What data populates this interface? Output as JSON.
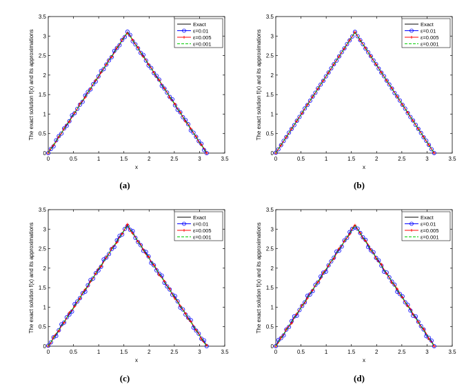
{
  "chart_data": [
    {
      "type": "line",
      "caption": "(a)",
      "xlabel": "x",
      "ylabel": "The exact solution f(x) and its approximations",
      "xlim": [
        0,
        3.5
      ],
      "ylim": [
        0,
        3.5
      ],
      "xticks": [
        "0",
        "0.5",
        "1",
        "1.5",
        "2",
        "2.5",
        "3",
        "3.5"
      ],
      "yticks": [
        "0",
        "0.5",
        "1",
        "1.5",
        "2",
        "2.5",
        "3",
        "3.5"
      ],
      "legend_position": "top-right",
      "noise_level": 0.025,
      "series": [
        {
          "name": "Exact",
          "color": "#000000",
          "style": "solid",
          "marker": "none",
          "x": [
            0,
            1.5708,
            3.1416
          ],
          "y": [
            0,
            3.1,
            0
          ]
        },
        {
          "name": "ε=0.01",
          "color": "#0000ff",
          "style": "solid",
          "marker": "circle",
          "x": [
            0,
            3.1416
          ],
          "y": [
            0,
            0
          ]
        },
        {
          "name": "ε=0.005",
          "color": "#ff0000",
          "style": "solid",
          "marker": "plus",
          "x": [
            0,
            3.1416
          ],
          "y": [
            0,
            0
          ]
        },
        {
          "name": "ε=0.001",
          "color": "#00cc00",
          "style": "dashed",
          "marker": "none",
          "x": [
            0,
            1.5708,
            3.1416
          ],
          "y": [
            0,
            3.1,
            0
          ]
        }
      ]
    },
    {
      "type": "line",
      "caption": "(b)",
      "xlabel": "x",
      "ylabel": "The exact solution f(x) and its approximations",
      "xlim": [
        0,
        3.5
      ],
      "ylim": [
        0,
        3.5
      ],
      "xticks": [
        "0",
        "0.5",
        "1",
        "1.5",
        "2",
        "2.5",
        "3",
        "3.5"
      ],
      "yticks": [
        "0",
        "0.5",
        "1",
        "1.5",
        "2",
        "2.5",
        "3",
        "3.5"
      ],
      "legend_position": "top-right",
      "noise_level": 0.006,
      "series": [
        {
          "name": "Exact",
          "color": "#000000",
          "style": "solid",
          "marker": "none",
          "x": [
            0,
            1.5708,
            3.1416
          ],
          "y": [
            0,
            3.1,
            0
          ]
        },
        {
          "name": "ε=0.01",
          "color": "#0000ff",
          "style": "solid",
          "marker": "circle",
          "x": [
            0,
            3.1416
          ],
          "y": [
            0,
            0
          ]
        },
        {
          "name": "ε=0.005",
          "color": "#ff0000",
          "style": "solid",
          "marker": "plus",
          "x": [
            0,
            3.1416
          ],
          "y": [
            0,
            0
          ]
        },
        {
          "name": "ε=0.001",
          "color": "#00cc00",
          "style": "dashed",
          "marker": "none",
          "x": [
            0,
            1.5708,
            3.1416
          ],
          "y": [
            0,
            3.1,
            0
          ]
        }
      ]
    },
    {
      "type": "line",
      "caption": "(c)",
      "xlabel": "x",
      "ylabel": "The exact solution f(x) and its approximations",
      "xlim": [
        0,
        3.5
      ],
      "ylim": [
        0,
        3.5
      ],
      "xticks": [
        "0",
        "0.5",
        "1",
        "1.5",
        "2",
        "2.5",
        "3",
        "3.5"
      ],
      "yticks": [
        "0",
        "0.5",
        "1",
        "1.5",
        "2",
        "2.5",
        "3",
        "3.5"
      ],
      "legend_position": "top-right",
      "noise_level": 0.035,
      "series": [
        {
          "name": "Exact",
          "color": "#000000",
          "style": "solid",
          "marker": "none",
          "x": [
            0,
            1.5708,
            3.1416
          ],
          "y": [
            0,
            3.1,
            0
          ]
        },
        {
          "name": "ε=0.01",
          "color": "#0000ff",
          "style": "solid",
          "marker": "circle",
          "x": [
            0,
            3.1416
          ],
          "y": [
            0,
            0
          ]
        },
        {
          "name": "ε=0.005",
          "color": "#ff0000",
          "style": "solid",
          "marker": "plus",
          "x": [
            0,
            3.1416
          ],
          "y": [
            0,
            0
          ]
        },
        {
          "name": "ε=0.001",
          "color": "#00cc00",
          "style": "dashed",
          "marker": "none",
          "x": [
            0,
            1.5708,
            3.1416
          ],
          "y": [
            0,
            3.1,
            0
          ]
        }
      ]
    },
    {
      "type": "line",
      "caption": "(d)",
      "xlabel": "x",
      "ylabel": "The exact solution f(x) and its approximations",
      "xlim": [
        0,
        3.5
      ],
      "ylim": [
        0,
        3.5
      ],
      "xticks": [
        "0",
        "0.5",
        "1",
        "1.5",
        "2",
        "2.5",
        "3",
        "3.5"
      ],
      "yticks": [
        "0",
        "0.5",
        "1",
        "1.5",
        "2",
        "2.5",
        "3",
        "3.5"
      ],
      "legend_position": "top-right",
      "noise_level": 0.035,
      "series": [
        {
          "name": "Exact",
          "color": "#000000",
          "style": "solid",
          "marker": "none",
          "x": [
            0,
            1.5708,
            3.1416
          ],
          "y": [
            0,
            3.1,
            0
          ]
        },
        {
          "name": "ε=0.01",
          "color": "#0000ff",
          "style": "solid",
          "marker": "circle",
          "x": [
            0,
            3.1416
          ],
          "y": [
            0,
            0
          ]
        },
        {
          "name": "ε=0.005",
          "color": "#ff0000",
          "style": "solid",
          "marker": "plus",
          "x": [
            0,
            3.1416
          ],
          "y": [
            0,
            0
          ]
        },
        {
          "name": "ε=0.001",
          "color": "#00cc00",
          "style": "dashed",
          "marker": "none",
          "x": [
            0,
            1.5708,
            3.1416
          ],
          "y": [
            0,
            3.1,
            0
          ]
        }
      ]
    }
  ]
}
